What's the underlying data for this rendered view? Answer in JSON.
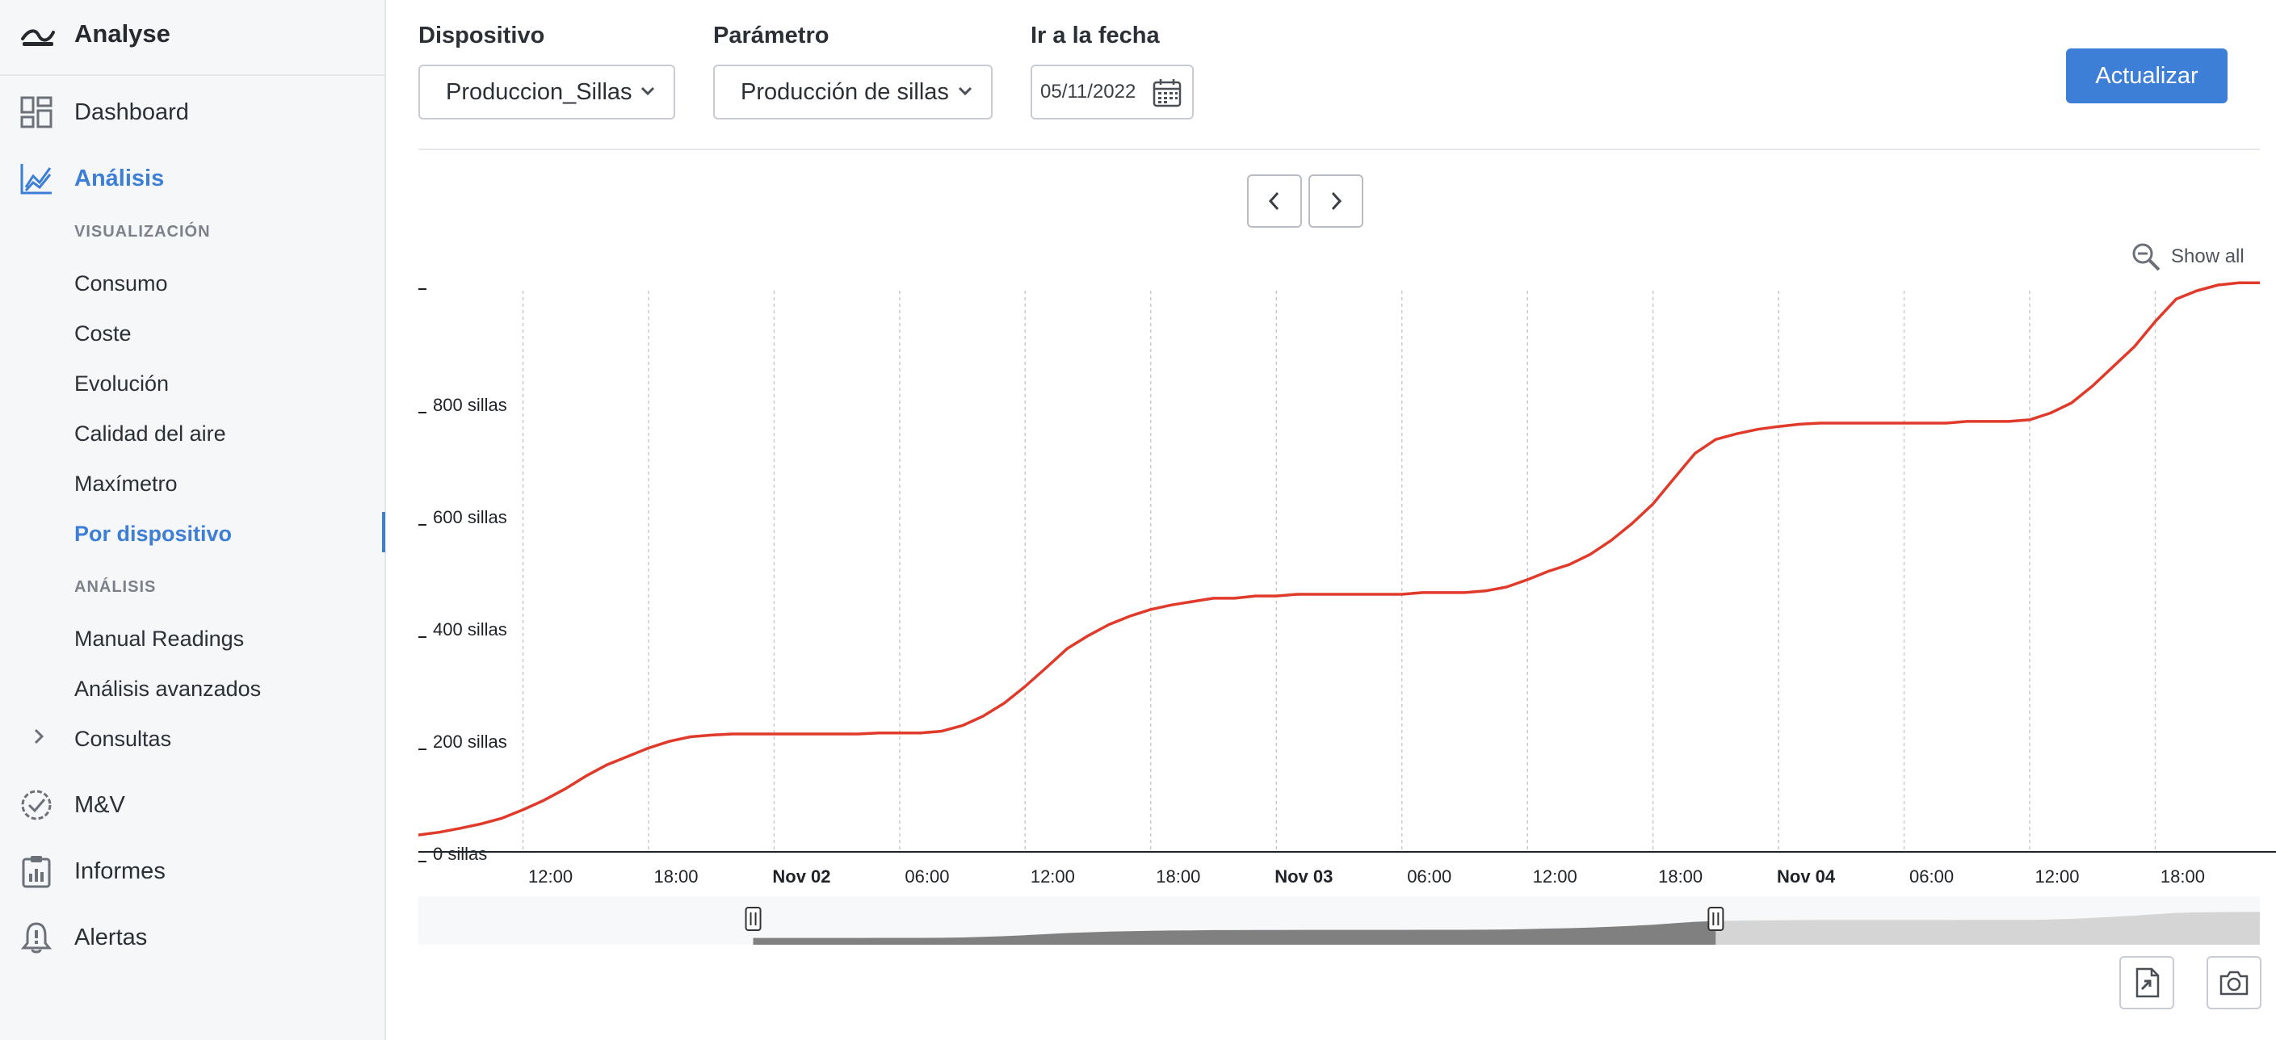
{
  "app": {
    "title": "Analyse"
  },
  "sidebar": {
    "main_items": [
      {
        "id": "dashboard",
        "label": "Dashboard",
        "icon": "dashboard-icon"
      },
      {
        "id": "analisis",
        "label": "Análisis",
        "icon": "chart-line-icon",
        "active": true
      },
      {
        "id": "myv",
        "label": "M&V",
        "icon": "check-circle-icon"
      },
      {
        "id": "informes",
        "label": "Informes",
        "icon": "clipboard-icon"
      },
      {
        "id": "alertas",
        "label": "Alertas",
        "icon": "bell-icon"
      }
    ],
    "section_visualizacion": "VISUALIZACIÓN",
    "visualizacion_items": [
      "Consumo",
      "Coste",
      "Evolución",
      "Calidad del aire",
      "Maxímetro",
      "Por dispositivo"
    ],
    "section_analisis": "ANÁLISIS",
    "analisis_items": [
      "Manual Readings",
      "Análisis avanzados"
    ],
    "consultas": "Consultas"
  },
  "filters": {
    "device_label": "Dispositivo",
    "device_value": "Produccion_Sillas",
    "param_label": "Parámetro",
    "param_value": "Producción de sillas",
    "date_label": "Ir a la fecha",
    "date_value": "05/11/2022",
    "update_button": "Actualizar"
  },
  "chart_controls": {
    "show_all": "Show all"
  },
  "colors": {
    "accent": "#3d7fd6",
    "series": "#e03a2a",
    "sidebar_bg": "#f6f7f9"
  },
  "chart_data": {
    "type": "line",
    "y_unit": "sillas",
    "y_ticks": [
      "0 sillas",
      "200 sillas",
      "400 sillas",
      "600 sillas",
      "800 sillas"
    ],
    "y_tick_values": [
      0,
      200,
      400,
      600,
      800
    ],
    "ylim": [
      0,
      1000
    ],
    "xlim": [
      0,
      88
    ],
    "x_ticks": [
      {
        "label": "12:00",
        "x": 5,
        "bold": false
      },
      {
        "label": "18:00",
        "x": 11,
        "bold": false
      },
      {
        "label": "Nov 02",
        "x": 17,
        "bold": true
      },
      {
        "label": "06:00",
        "x": 23,
        "bold": false
      },
      {
        "label": "12:00",
        "x": 29,
        "bold": false
      },
      {
        "label": "18:00",
        "x": 35,
        "bold": false
      },
      {
        "label": "Nov 03",
        "x": 41,
        "bold": true
      },
      {
        "label": "06:00",
        "x": 47,
        "bold": false
      },
      {
        "label": "12:00",
        "x": 53,
        "bold": false
      },
      {
        "label": "18:00",
        "x": 59,
        "bold": false
      },
      {
        "label": "Nov 04",
        "x": 65,
        "bold": true
      },
      {
        "label": "06:00",
        "x": 71,
        "bold": false
      },
      {
        "label": "12:00",
        "x": 77,
        "bold": false
      },
      {
        "label": "18:00",
        "x": 83,
        "bold": false
      }
    ],
    "grid_x": true,
    "series": [
      {
        "x": [
          0,
          1,
          2,
          3,
          4,
          5,
          6,
          7,
          8,
          9,
          10,
          11,
          12,
          13,
          14,
          15,
          16,
          17,
          18,
          19,
          20,
          21,
          22,
          23,
          24,
          25,
          26,
          27,
          28,
          29,
          30,
          31,
          32,
          33,
          34,
          35,
          36,
          37,
          38,
          39,
          40,
          41,
          42,
          43,
          44,
          45,
          46,
          47,
          48,
          49,
          50,
          51,
          52,
          53,
          54,
          55,
          56,
          57,
          58,
          59,
          60,
          61,
          62,
          63,
          64,
          65,
          66,
          67,
          68,
          69,
          70,
          71,
          72,
          73,
          74,
          75,
          76,
          77,
          78,
          79,
          80,
          81,
          82,
          83,
          84,
          85,
          86,
          87,
          88
        ],
        "values": [
          30,
          35,
          42,
          50,
          60,
          75,
          92,
          112,
          135,
          155,
          170,
          185,
          197,
          205,
          208,
          210,
          210,
          210,
          210,
          210,
          210,
          210,
          212,
          212,
          212,
          215,
          225,
          242,
          265,
          295,
          328,
          362,
          385,
          405,
          420,
          432,
          440,
          446,
          452,
          452,
          456,
          456,
          459,
          459,
          459,
          459,
          459,
          459,
          462,
          462,
          462,
          465,
          472,
          485,
          500,
          512,
          530,
          555,
          585,
          620,
          665,
          710,
          735,
          745,
          753,
          758,
          762,
          764,
          764,
          764,
          764,
          764,
          764,
          764,
          767,
          767,
          767,
          770,
          782,
          800,
          830,
          865,
          900,
          945,
          985,
          1000,
          1010,
          1014,
          1014
        ]
      }
    ],
    "navigator": {
      "handle_left_x": 16,
      "handle_right_x": 62
    }
  }
}
